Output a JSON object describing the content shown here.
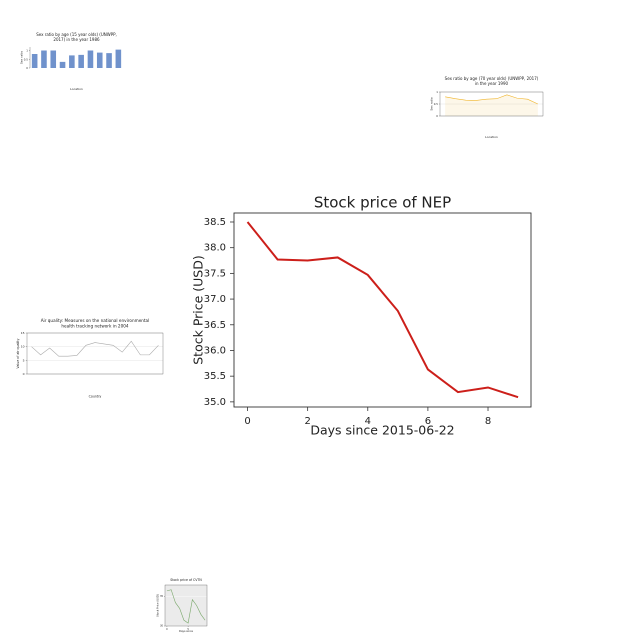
{
  "chart_data": [
    {
      "type": "line",
      "title": [
        "Stock price of NEP"
      ],
      "x_label": "Days since 2015-06-22",
      "y_label": "Stock Price (USD)",
      "x": [
        0,
        1,
        2,
        3,
        4,
        5,
        6,
        7,
        8,
        9
      ],
      "series": [
        {
          "color": "#cc1f1a",
          "values": [
            38.5,
            37.77,
            37.75,
            37.81,
            37.47,
            36.77,
            35.63,
            35.19,
            35.28,
            35.09
          ]
        }
      ],
      "xlim": [
        -0.45,
        9.43
      ],
      "xticks": [
        0,
        2,
        4,
        6,
        8
      ],
      "ylim": [
        34.9,
        38.675
      ],
      "yticks": [
        {
          "value": 35,
          "label": "35.0"
        },
        {
          "value": 35.5,
          "label": "35.5"
        },
        {
          "value": 36,
          "label": "36.0"
        },
        {
          "value": 36.5,
          "label": "36.5"
        },
        {
          "value": 37,
          "label": "37.0"
        },
        {
          "value": 37.5,
          "label": "37.5"
        },
        {
          "value": 38,
          "label": "38.0"
        },
        {
          "value": 38.5,
          "label": "38.5"
        }
      ],
      "grid": false
    },
    {
      "type": "bar",
      "title": [
        "Sex ratio by age (15 year olds) (UNWPP,",
        "2017) in the year 1986"
      ],
      "x_label": "Location",
      "y_label": "Sex ratio",
      "categories": [
        null,
        null,
        null,
        null,
        null,
        null,
        null,
        null,
        null,
        null
      ],
      "series": [
        {
          "color": "#7092cc",
          "values": [
            0.8,
            1.0,
            1.0,
            0.35,
            0.72,
            0.75,
            1.0,
            0.88,
            0.85,
            1.05
          ]
        }
      ],
      "ylim": [
        0,
        1.2
      ],
      "yticks": [
        0,
        0.5,
        1
      ],
      "grid": false
    },
    {
      "type": "area",
      "title": [
        "Sex ratio by age (70 year olds) (UNWPP, 2017)",
        "in the year 1990"
      ],
      "x_label": "Location",
      "y_label": "Sex ratio",
      "categories": [
        null,
        null,
        null,
        null,
        null,
        null,
        null,
        null,
        null,
        null
      ],
      "series": [
        {
          "color": "#f0b429",
          "values": [
            0.8,
            0.72,
            0.66,
            0.65,
            0.7,
            0.72,
            0.88,
            0.74,
            0.7,
            0.5
          ]
        }
      ],
      "ylim": [
        0,
        1
      ],
      "yticks": [
        0,
        0.5,
        1
      ],
      "grid": true
    },
    {
      "type": "line",
      "title": [
        "Air quality: Measures on the national environmental",
        "health tracking network in 2004"
      ],
      "x_label": "Country",
      "y_label": "Value of air quality",
      "categories": [
        null,
        null,
        null,
        null,
        null,
        null,
        null,
        null,
        null,
        null,
        null,
        null,
        null,
        null,
        null
      ],
      "series": [
        {
          "color": "#aaaaaa",
          "values": [
            10,
            7,
            9.5,
            6.5,
            6.5,
            6.8,
            10.5,
            11.5,
            11,
            10.5,
            8,
            12,
            7,
            7,
            10.5
          ]
        }
      ],
      "ylim": [
        0,
        15
      ],
      "yticks": [
        0,
        5,
        10,
        15
      ],
      "grid": true
    },
    {
      "type": "line",
      "title": [
        "Stock price of CVTN"
      ],
      "x_label": "Days since",
      "y_label": "Stock Price (USD)",
      "x": [
        0,
        1,
        2,
        3,
        4,
        5,
        6,
        7,
        8,
        9
      ],
      "series": [
        {
          "color": "#7aa86b",
          "values": [
            36,
            36.2,
            34,
            33,
            31,
            30.5,
            34.5,
            33.5,
            32,
            31
          ]
        }
      ],
      "xlim": [
        -0.45,
        9.45
      ],
      "xticks": [
        0,
        5
      ],
      "ylim": [
        30,
        37
      ],
      "yticks": [
        30,
        35
      ],
      "grid": true,
      "background": "#ebebeb"
    }
  ]
}
